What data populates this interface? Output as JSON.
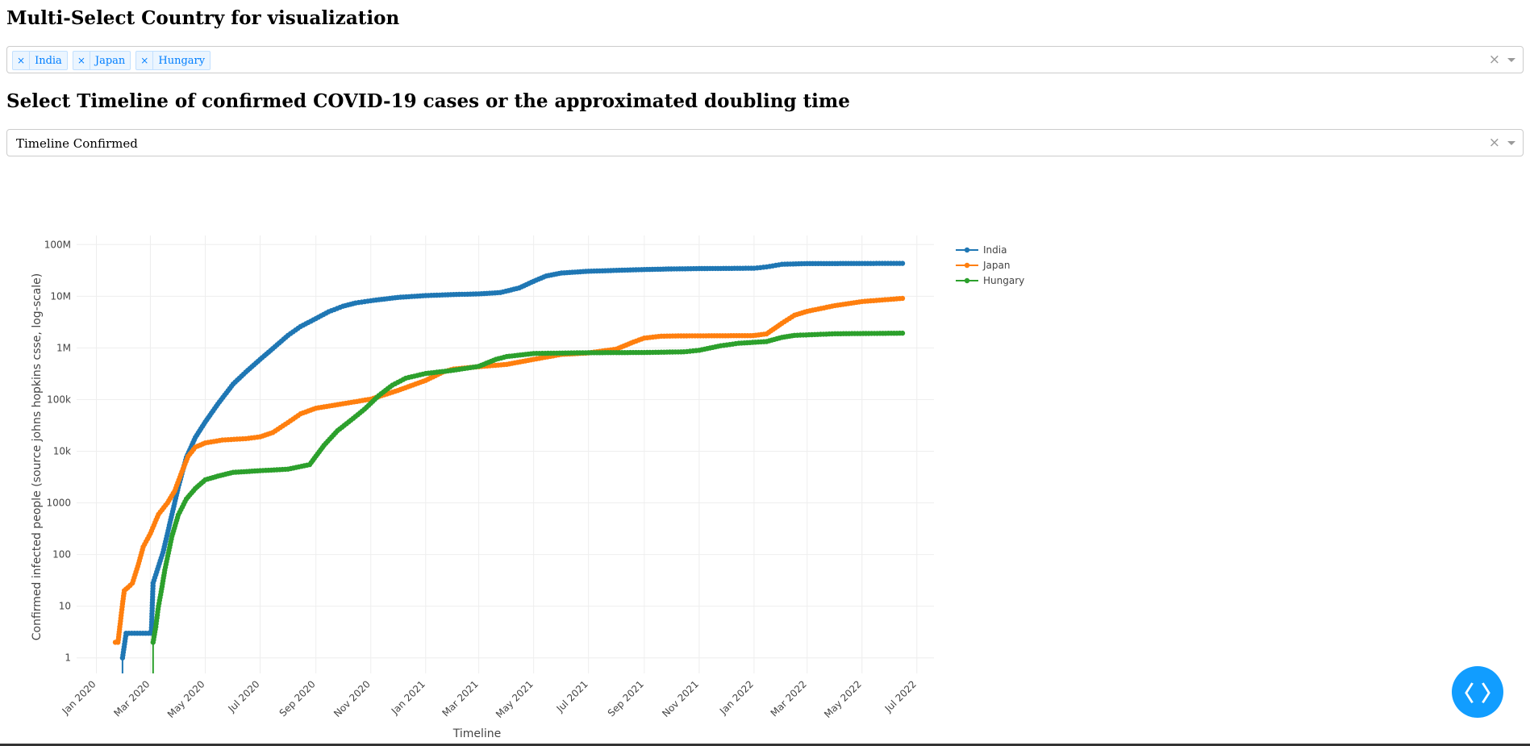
{
  "page": {
    "country_heading": "Multi-Select Country for visualization",
    "timeline_heading": "Select Timeline of confirmed COVID-19 cases or the approximated doubling time"
  },
  "country_select": {
    "selected": [
      "India",
      "Japan",
      "Hungary"
    ],
    "tag_remove_symbol": "×",
    "clear_symbol": "×"
  },
  "mode_select": {
    "value": "Timeline Confirmed",
    "clear_symbol": "×"
  },
  "fab": {
    "icon": "code-brackets-icon",
    "glyph": "〈 〉"
  },
  "chart_data": {
    "type": "line",
    "xlabel": "Timeline",
    "ylabel": "Confirmed infected people (source johns hopkins csse, log-scale)",
    "y_scale": "log",
    "ylim": [
      0.5,
      150000000
    ],
    "xlim": [
      "2019-12-10",
      "2022-07-20"
    ],
    "grid": true,
    "legend_position": "top-right",
    "x_ticks": [
      "2020-01-01",
      "2020-03-01",
      "2020-05-01",
      "2020-07-01",
      "2020-09-01",
      "2020-11-01",
      "2021-01-01",
      "2021-03-01",
      "2021-05-01",
      "2021-07-01",
      "2021-09-01",
      "2021-11-01",
      "2022-01-01",
      "2022-03-01",
      "2022-05-01",
      "2022-07-01"
    ],
    "x_tick_labels": [
      "Jan 2020",
      "Mar 2020",
      "May 2020",
      "Jul 2020",
      "Sep 2020",
      "Nov 2020",
      "Jan 2021",
      "Mar 2021",
      "May 2021",
      "Jul 2021",
      "Sep 2021",
      "Nov 2021",
      "Jan 2022",
      "Mar 2022",
      "May 2022",
      "Jul 2022"
    ],
    "y_ticks": [
      1,
      10,
      100,
      1000,
      10000,
      100000,
      1000000,
      10000000,
      100000000
    ],
    "y_tick_labels": [
      "1",
      "10",
      "100",
      "1000",
      "10k",
      "100k",
      "1M",
      "10M",
      "100M"
    ],
    "series": [
      {
        "name": "India",
        "color": "#1f77b4",
        "points": [
          [
            "2020-01-30",
            1
          ],
          [
            "2020-02-03",
            3
          ],
          [
            "2020-03-02",
            3
          ],
          [
            "2020-03-04",
            28
          ],
          [
            "2020-03-15",
            110
          ],
          [
            "2020-03-25",
            600
          ],
          [
            "2020-04-01",
            2000
          ],
          [
            "2020-04-10",
            7600
          ],
          [
            "2020-04-20",
            18500
          ],
          [
            "2020-05-01",
            37000
          ],
          [
            "2020-05-15",
            82000
          ],
          [
            "2020-06-01",
            200000
          ],
          [
            "2020-06-15",
            340000
          ],
          [
            "2020-07-01",
            600000
          ],
          [
            "2020-07-15",
            970000
          ],
          [
            "2020-08-01",
            1750000
          ],
          [
            "2020-08-15",
            2600000
          ],
          [
            "2020-09-01",
            3700000
          ],
          [
            "2020-09-15",
            5000000
          ],
          [
            "2020-10-01",
            6400000
          ],
          [
            "2020-10-15",
            7400000
          ],
          [
            "2020-11-01",
            8200000
          ],
          [
            "2020-12-01",
            9500000
          ],
          [
            "2021-01-01",
            10300000
          ],
          [
            "2021-02-01",
            10800000
          ],
          [
            "2021-03-01",
            11100000
          ],
          [
            "2021-03-25",
            11800000
          ],
          [
            "2021-04-15",
            14500000
          ],
          [
            "2021-05-01",
            19500000
          ],
          [
            "2021-05-15",
            24700000
          ],
          [
            "2021-06-01",
            28200000
          ],
          [
            "2021-07-01",
            30500000
          ],
          [
            "2021-08-01",
            31700000
          ],
          [
            "2021-09-01",
            32900000
          ],
          [
            "2021-10-01",
            33800000
          ],
          [
            "2021-11-01",
            34300000
          ],
          [
            "2021-12-01",
            34600000
          ],
          [
            "2022-01-01",
            34900000
          ],
          [
            "2022-01-15",
            37000000
          ],
          [
            "2022-02-01",
            41500000
          ],
          [
            "2022-03-01",
            42900000
          ],
          [
            "2022-04-01",
            43000000
          ],
          [
            "2022-05-01",
            43100000
          ],
          [
            "2022-06-15",
            43300000
          ]
        ]
      },
      {
        "name": "Japan",
        "color": "#ff7f0e",
        "points": [
          [
            "2020-01-22",
            2
          ],
          [
            "2020-01-25",
            2
          ],
          [
            "2020-01-27",
            4
          ],
          [
            "2020-01-30",
            11
          ],
          [
            "2020-02-01",
            20
          ],
          [
            "2020-02-05",
            23
          ],
          [
            "2020-02-10",
            28
          ],
          [
            "2020-02-16",
            59
          ],
          [
            "2020-02-22",
            140
          ],
          [
            "2020-03-01",
            256
          ],
          [
            "2020-03-10",
            600
          ],
          [
            "2020-03-20",
            1000
          ],
          [
            "2020-03-28",
            1700
          ],
          [
            "2020-04-05",
            4000
          ],
          [
            "2020-04-12",
            8000
          ],
          [
            "2020-04-20",
            12000
          ],
          [
            "2020-05-01",
            14500
          ],
          [
            "2020-05-20",
            16500
          ],
          [
            "2020-06-15",
            17500
          ],
          [
            "2020-07-01",
            19000
          ],
          [
            "2020-07-15",
            23000
          ],
          [
            "2020-08-01",
            36000
          ],
          [
            "2020-08-15",
            53000
          ],
          [
            "2020-09-01",
            68000
          ],
          [
            "2020-10-01",
            83000
          ],
          [
            "2020-11-01",
            102000
          ],
          [
            "2020-12-01",
            150000
          ],
          [
            "2021-01-01",
            235000
          ],
          [
            "2021-01-20",
            340000
          ],
          [
            "2021-02-01",
            390000
          ],
          [
            "2021-03-01",
            433000
          ],
          [
            "2021-04-01",
            480000
          ],
          [
            "2021-05-01",
            600000
          ],
          [
            "2021-06-01",
            750000
          ],
          [
            "2021-07-01",
            800000
          ],
          [
            "2021-08-01",
            950000
          ],
          [
            "2021-08-20",
            1300000
          ],
          [
            "2021-09-01",
            1550000
          ],
          [
            "2021-09-20",
            1690000
          ],
          [
            "2021-10-15",
            1710000
          ],
          [
            "2021-12-31",
            1730000
          ],
          [
            "2022-01-15",
            1870000
          ],
          [
            "2022-02-01",
            3000000
          ],
          [
            "2022-02-15",
            4300000
          ],
          [
            "2022-03-01",
            5100000
          ],
          [
            "2022-04-01",
            6600000
          ],
          [
            "2022-05-01",
            7900000
          ],
          [
            "2022-06-15",
            9100000
          ]
        ]
      },
      {
        "name": "Hungary",
        "color": "#2ca02c",
        "points": [
          [
            "2020-03-04",
            2
          ],
          [
            "2020-03-07",
            4
          ],
          [
            "2020-03-10",
            10
          ],
          [
            "2020-03-13",
            19
          ],
          [
            "2020-03-17",
            50
          ],
          [
            "2020-03-25",
            226
          ],
          [
            "2020-04-01",
            585
          ],
          [
            "2020-04-10",
            1190
          ],
          [
            "2020-04-20",
            1900
          ],
          [
            "2020-05-01",
            2800
          ],
          [
            "2020-05-15",
            3300
          ],
          [
            "2020-06-01",
            3900
          ],
          [
            "2020-07-01",
            4200
          ],
          [
            "2020-08-01",
            4500
          ],
          [
            "2020-08-25",
            5500
          ],
          [
            "2020-09-10",
            13000
          ],
          [
            "2020-09-25",
            25000
          ],
          [
            "2020-10-10",
            40000
          ],
          [
            "2020-10-25",
            65000
          ],
          [
            "2020-11-10",
            120000
          ],
          [
            "2020-11-25",
            190000
          ],
          [
            "2020-12-10",
            260000
          ],
          [
            "2021-01-01",
            320000
          ],
          [
            "2021-02-01",
            370000
          ],
          [
            "2021-03-01",
            440000
          ],
          [
            "2021-03-20",
            600000
          ],
          [
            "2021-04-01",
            680000
          ],
          [
            "2021-05-01",
            780000
          ],
          [
            "2021-07-01",
            808000
          ],
          [
            "2021-09-01",
            815000
          ],
          [
            "2021-10-15",
            840000
          ],
          [
            "2021-11-01",
            900000
          ],
          [
            "2021-11-25",
            1100000
          ],
          [
            "2021-12-15",
            1230000
          ],
          [
            "2022-01-15",
            1330000
          ],
          [
            "2022-02-01",
            1600000
          ],
          [
            "2022-02-15",
            1750000
          ],
          [
            "2022-04-01",
            1880000
          ],
          [
            "2022-06-15",
            1930000
          ]
        ]
      }
    ]
  }
}
